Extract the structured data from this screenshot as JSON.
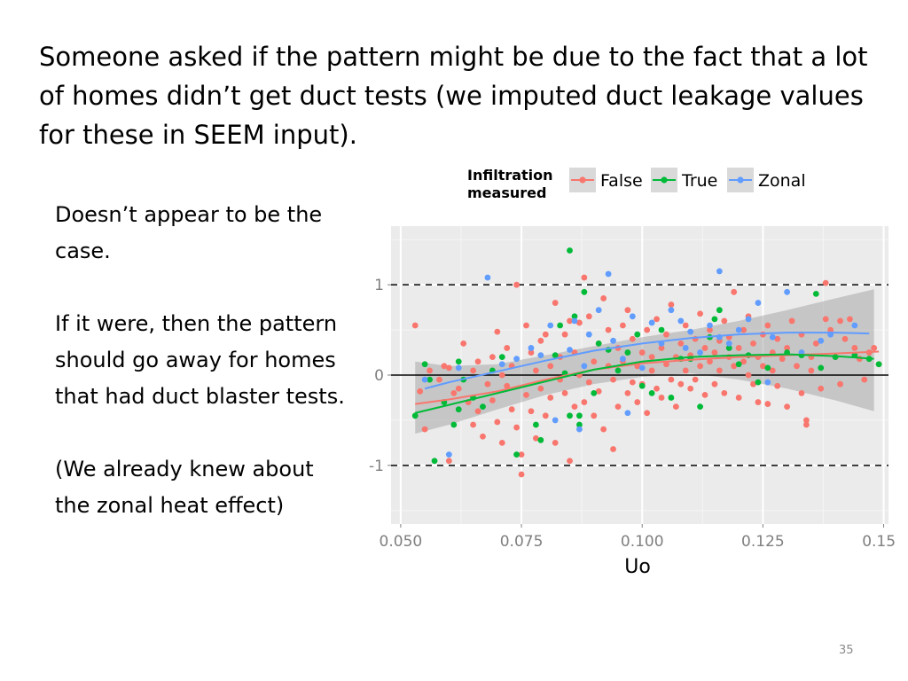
{
  "slide": {
    "heading": "Someone asked if the pattern might be due to the fact that a lot of homes didn’t get duct tests (we imputed duct leakage values for these in SEEM input).",
    "paragraphs": [
      "Doesn’t appear to be the case.",
      "If it were, then the pattern should go away for homes that had duct blaster tests.",
      "(We already knew about the zonal heat effect)"
    ],
    "slide_number": "35"
  },
  "chart_data": {
    "type": "scatter",
    "xlabel": "Uo",
    "ylabel": "",
    "xlim": [
      0.048,
      0.151
    ],
    "ylim": [
      -1.65,
      1.65
    ],
    "x_ticks": [
      0.05,
      0.075,
      0.1,
      0.125,
      0.15
    ],
    "x_tick_labels": [
      "0.050",
      "0.075",
      "0.100",
      "0.125",
      "0.150"
    ],
    "y_ticks": [
      -1,
      0,
      1
    ],
    "y_tick_labels": [
      "-1",
      "0",
      "1"
    ],
    "reference_lines": [
      {
        "y": 1,
        "style": "dashed"
      },
      {
        "y": 0,
        "style": "solid"
      },
      {
        "y": -1,
        "style": "dashed"
      }
    ],
    "grid": true,
    "background": "#ebebeb",
    "legend": {
      "title": "Infiltration\nmeasured",
      "position": "top",
      "entries": [
        "False",
        "True",
        "Zonal"
      ]
    },
    "series": [
      {
        "name": "False",
        "color": "#f8766d",
        "points": [
          [
            0.053,
            0.55
          ],
          [
            0.054,
            -0.18
          ],
          [
            0.055,
            -0.6
          ],
          [
            0.056,
            0.05
          ],
          [
            0.058,
            -0.05
          ],
          [
            0.059,
            0.1
          ],
          [
            0.06,
            0.08
          ],
          [
            0.06,
            -0.95
          ],
          [
            0.061,
            -0.2
          ],
          [
            0.062,
            -0.15
          ],
          [
            0.063,
            0.35
          ],
          [
            0.064,
            -0.3
          ],
          [
            0.065,
            0.05
          ],
          [
            0.065,
            -0.55
          ],
          [
            0.066,
            -0.4
          ],
          [
            0.066,
            0.15
          ],
          [
            0.067,
            -0.68
          ],
          [
            0.068,
            -0.1
          ],
          [
            0.069,
            0.2
          ],
          [
            0.069,
            -0.28
          ],
          [
            0.07,
            0.48
          ],
          [
            0.07,
            -0.52
          ],
          [
            0.071,
            -0.75
          ],
          [
            0.071,
            0.0
          ],
          [
            0.072,
            0.3
          ],
          [
            0.072,
            -0.12
          ],
          [
            0.073,
            0.1
          ],
          [
            0.073,
            -0.38
          ],
          [
            0.074,
            1.0
          ],
          [
            0.074,
            -0.58
          ],
          [
            0.075,
            -0.88
          ],
          [
            0.075,
            -1.1
          ],
          [
            0.076,
            0.55
          ],
          [
            0.076,
            -0.22
          ],
          [
            0.077,
            0.25
          ],
          [
            0.077,
            -0.4
          ],
          [
            0.078,
            0.05
          ],
          [
            0.078,
            -0.7
          ],
          [
            0.079,
            -0.15
          ],
          [
            0.079,
            0.38
          ],
          [
            0.08,
            -0.45
          ],
          [
            0.08,
            0.45
          ],
          [
            0.081,
            -0.25
          ],
          [
            0.081,
            0.1
          ],
          [
            0.082,
            -0.75
          ],
          [
            0.082,
            0.8
          ],
          [
            0.083,
            -0.05
          ],
          [
            0.083,
            0.2
          ],
          [
            0.084,
            -0.2
          ],
          [
            0.084,
            0.45
          ],
          [
            0.085,
            -0.95
          ],
          [
            0.085,
            0.6
          ],
          [
            0.086,
            -0.35
          ],
          [
            0.086,
            0.25
          ],
          [
            0.087,
            0.0
          ],
          [
            0.087,
            0.58
          ],
          [
            0.088,
            1.08
          ],
          [
            0.088,
            -0.3
          ],
          [
            0.089,
            -0.08
          ],
          [
            0.089,
            0.65
          ],
          [
            0.09,
            0.15
          ],
          [
            0.09,
            -0.45
          ],
          [
            0.091,
            0.35
          ],
          [
            0.091,
            -0.18
          ],
          [
            0.092,
            0.85
          ],
          [
            0.092,
            -0.6
          ],
          [
            0.093,
            0.1
          ],
          [
            0.093,
            0.5
          ],
          [
            0.094,
            -0.82
          ],
          [
            0.094,
            -0.05
          ],
          [
            0.095,
            0.3
          ],
          [
            0.095,
            -0.35
          ],
          [
            0.096,
            0.55
          ],
          [
            0.096,
            0.15
          ],
          [
            0.097,
            -0.2
          ],
          [
            0.097,
            0.72
          ],
          [
            0.098,
            -0.08
          ],
          [
            0.098,
            0.4
          ],
          [
            0.099,
            0.1
          ],
          [
            0.099,
            -0.3
          ],
          [
            0.1,
            0.25
          ],
          [
            0.1,
            -0.1
          ],
          [
            0.101,
            0.5
          ],
          [
            0.101,
            -0.42
          ],
          [
            0.102,
            0.2
          ],
          [
            0.102,
            0.05
          ],
          [
            0.103,
            -0.15
          ],
          [
            0.103,
            0.62
          ],
          [
            0.104,
            0.3
          ],
          [
            0.104,
            -0.25
          ],
          [
            0.105,
            0.12
          ],
          [
            0.105,
            0.45
          ],
          [
            0.106,
            -0.05
          ],
          [
            0.106,
            0.78
          ],
          [
            0.107,
            0.2
          ],
          [
            0.107,
            -0.35
          ],
          [
            0.108,
            0.35
          ],
          [
            0.108,
            -0.1
          ],
          [
            0.109,
            0.05
          ],
          [
            0.109,
            0.55
          ],
          [
            0.11,
            -0.15
          ],
          [
            0.11,
            0.22
          ],
          [
            0.111,
            0.4
          ],
          [
            0.111,
            -0.05
          ],
          [
            0.112,
            0.1
          ],
          [
            0.112,
            0.68
          ],
          [
            0.113,
            -0.22
          ],
          [
            0.113,
            0.3
          ],
          [
            0.114,
            0.15
          ],
          [
            0.114,
            0.5
          ],
          [
            0.115,
            -0.1
          ],
          [
            0.115,
            0.25
          ],
          [
            0.116,
            0.38
          ],
          [
            0.116,
            0.05
          ],
          [
            0.117,
            0.6
          ],
          [
            0.117,
            -0.2
          ],
          [
            0.118,
            0.2
          ],
          [
            0.118,
            0.42
          ],
          [
            0.119,
            0.92
          ],
          [
            0.119,
            0.1
          ],
          [
            0.12,
            -0.25
          ],
          [
            0.12,
            0.3
          ],
          [
            0.121,
            0.5
          ],
          [
            0.121,
            0.15
          ],
          [
            0.122,
            0.0
          ],
          [
            0.122,
            0.65
          ],
          [
            0.123,
            0.35
          ],
          [
            0.123,
            -0.1
          ],
          [
            0.124,
            0.2
          ],
          [
            0.124,
            -0.3
          ],
          [
            0.125,
            0.45
          ],
          [
            0.125,
            0.1
          ],
          [
            0.126,
            -0.32
          ],
          [
            0.126,
            0.55
          ],
          [
            0.127,
            0.25
          ],
          [
            0.127,
            0.05
          ],
          [
            0.128,
            0.4
          ],
          [
            0.128,
            -0.12
          ],
          [
            0.129,
            0.18
          ],
          [
            0.13,
            -0.35
          ],
          [
            0.13,
            0.3
          ],
          [
            0.131,
            0.6
          ],
          [
            0.132,
            0.1
          ],
          [
            0.133,
            -0.2
          ],
          [
            0.133,
            0.45
          ],
          [
            0.134,
            -0.55
          ],
          [
            0.134,
            -0.5
          ],
          [
            0.135,
            0.2
          ],
          [
            0.135,
            0.05
          ],
          [
            0.136,
            0.35
          ],
          [
            0.137,
            -0.15
          ],
          [
            0.138,
            0.62
          ],
          [
            0.138,
            1.02
          ],
          [
            0.139,
            0.5
          ],
          [
            0.14,
            0.2
          ],
          [
            0.141,
            -0.1
          ],
          [
            0.141,
            0.6
          ],
          [
            0.142,
            0.4
          ],
          [
            0.143,
            0.62
          ],
          [
            0.144,
            0.3
          ],
          [
            0.145,
            0.18
          ],
          [
            0.146,
            -0.05
          ],
          [
            0.147,
            0.25
          ],
          [
            0.148,
            0.3
          ],
          [
            0.149,
            0.12
          ]
        ]
      },
      {
        "name": "True",
        "color": "#00ba38",
        "points": [
          [
            0.053,
            -0.45
          ],
          [
            0.055,
            0.12
          ],
          [
            0.056,
            -0.05
          ],
          [
            0.057,
            -0.95
          ],
          [
            0.059,
            -0.3
          ],
          [
            0.061,
            -0.55
          ],
          [
            0.062,
            -0.38
          ],
          [
            0.062,
            0.15
          ],
          [
            0.063,
            -0.05
          ],
          [
            0.065,
            -0.25
          ],
          [
            0.067,
            -0.35
          ],
          [
            0.069,
            0.05
          ],
          [
            0.071,
            0.2
          ],
          [
            0.074,
            -0.88
          ],
          [
            0.078,
            -0.55
          ],
          [
            0.079,
            -0.72
          ],
          [
            0.082,
            0.22
          ],
          [
            0.083,
            0.55
          ],
          [
            0.084,
            0.02
          ],
          [
            0.085,
            1.38
          ],
          [
            0.085,
            -0.45
          ],
          [
            0.086,
            0.65
          ],
          [
            0.087,
            -0.55
          ],
          [
            0.087,
            -0.45
          ],
          [
            0.088,
            0.92
          ],
          [
            0.09,
            -0.2
          ],
          [
            0.091,
            0.35
          ],
          [
            0.093,
            0.28
          ],
          [
            0.095,
            0.05
          ],
          [
            0.097,
            0.25
          ],
          [
            0.099,
            0.45
          ],
          [
            0.1,
            -0.12
          ],
          [
            0.102,
            -0.2
          ],
          [
            0.104,
            0.5
          ],
          [
            0.106,
            -0.25
          ],
          [
            0.108,
            0.18
          ],
          [
            0.11,
            0.18
          ],
          [
            0.112,
            -0.35
          ],
          [
            0.114,
            0.42
          ],
          [
            0.115,
            0.62
          ],
          [
            0.116,
            0.72
          ],
          [
            0.118,
            0.3
          ],
          [
            0.12,
            0.12
          ],
          [
            0.122,
            0.22
          ],
          [
            0.124,
            -0.08
          ],
          [
            0.126,
            0.08
          ],
          [
            0.13,
            0.25
          ],
          [
            0.133,
            0.22
          ],
          [
            0.136,
            0.9
          ],
          [
            0.137,
            0.08
          ],
          [
            0.14,
            0.2
          ],
          [
            0.144,
            0.22
          ],
          [
            0.147,
            0.18
          ],
          [
            0.149,
            0.12
          ]
        ]
      },
      {
        "name": "Zonal",
        "color": "#619cff",
        "points": [
          [
            0.055,
            -0.05
          ],
          [
            0.06,
            -0.88
          ],
          [
            0.062,
            0.08
          ],
          [
            0.068,
            1.08
          ],
          [
            0.071,
            0.12
          ],
          [
            0.074,
            0.18
          ],
          [
            0.077,
            0.3
          ],
          [
            0.079,
            0.22
          ],
          [
            0.081,
            0.55
          ],
          [
            0.082,
            -0.5
          ],
          [
            0.085,
            0.28
          ],
          [
            0.086,
            0.6
          ],
          [
            0.087,
            -0.6
          ],
          [
            0.088,
            0.1
          ],
          [
            0.089,
            0.45
          ],
          [
            0.091,
            0.72
          ],
          [
            0.093,
            1.12
          ],
          [
            0.094,
            0.38
          ],
          [
            0.096,
            0.18
          ],
          [
            0.097,
            -0.42
          ],
          [
            0.098,
            0.65
          ],
          [
            0.1,
            0.08
          ],
          [
            0.102,
            0.58
          ],
          [
            0.104,
            0.35
          ],
          [
            0.106,
            0.72
          ],
          [
            0.108,
            0.6
          ],
          [
            0.109,
            0.3
          ],
          [
            0.11,
            0.48
          ],
          [
            0.112,
            0.25
          ],
          [
            0.114,
            0.55
          ],
          [
            0.116,
            0.42
          ],
          [
            0.116,
            1.15
          ],
          [
            0.118,
            0.35
          ],
          [
            0.12,
            0.5
          ],
          [
            0.122,
            0.62
          ],
          [
            0.124,
            0.8
          ],
          [
            0.126,
            -0.08
          ],
          [
            0.127,
            0.42
          ],
          [
            0.13,
            0.92
          ],
          [
            0.133,
            0.25
          ],
          [
            0.137,
            0.38
          ],
          [
            0.139,
            0.45
          ],
          [
            0.144,
            0.55
          ]
        ]
      }
    ],
    "smooth_lines": [
      {
        "series": "False",
        "x": [
          0.053,
          0.06,
          0.07,
          0.08,
          0.09,
          0.1,
          0.11,
          0.12,
          0.13,
          0.14,
          0.149
        ],
        "y": [
          -0.32,
          -0.27,
          -0.18,
          -0.05,
          0.06,
          0.13,
          0.17,
          0.2,
          0.22,
          0.24,
          0.26
        ]
      },
      {
        "series": "True",
        "x": [
          0.053,
          0.06,
          0.07,
          0.08,
          0.09,
          0.1,
          0.11,
          0.12,
          0.13,
          0.14,
          0.148
        ],
        "y": [
          -0.42,
          -0.33,
          -0.2,
          -0.07,
          0.06,
          0.15,
          0.2,
          0.22,
          0.23,
          0.21,
          0.18
        ]
      },
      {
        "series": "Zonal",
        "x": [
          0.055,
          0.06,
          0.07,
          0.08,
          0.09,
          0.1,
          0.11,
          0.12,
          0.13,
          0.14,
          0.147
        ],
        "y": [
          -0.15,
          -0.08,
          0.04,
          0.16,
          0.27,
          0.35,
          0.41,
          0.45,
          0.47,
          0.47,
          0.46
        ]
      }
    ],
    "confidence_band": {
      "x": [
        0.053,
        0.06,
        0.07,
        0.08,
        0.09,
        0.1,
        0.11,
        0.12,
        0.13,
        0.14,
        0.148
      ],
      "upper": [
        0.15,
        0.1,
        0.12,
        0.22,
        0.32,
        0.42,
        0.5,
        0.6,
        0.72,
        0.85,
        0.95
      ],
      "lower": [
        -0.65,
        -0.55,
        -0.38,
        -0.22,
        -0.1,
        -0.02,
        0.02,
        -0.05,
        -0.15,
        -0.28,
        -0.4
      ]
    }
  }
}
